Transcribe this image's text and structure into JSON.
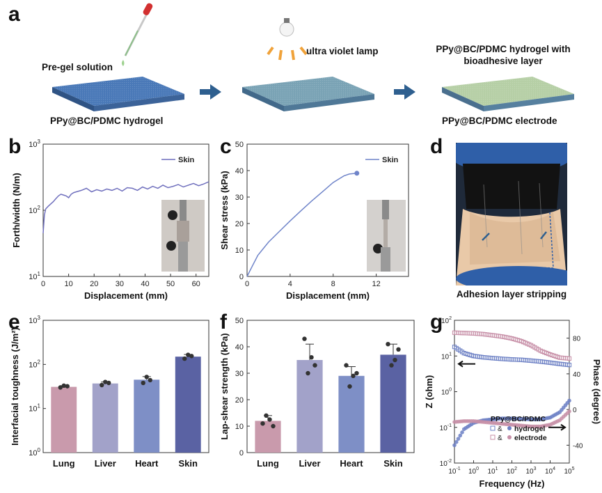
{
  "panel_letters": {
    "a": "a",
    "b": "b",
    "c": "c",
    "d": "d",
    "e": "e",
    "f": "f",
    "g": "g"
  },
  "panel_a": {
    "step1_label": "Pre-gel solution",
    "step1_caption": "PPy@BC/PDMC hydrogel",
    "step2_label": "ultra violet lamp",
    "step3_label_line1": "PPy@BC/PDMC hydrogel with",
    "step3_label_line2": "bioadhesive layer",
    "step3_caption": "PPy@BC/PDMC electrode",
    "colors": {
      "slab1": "#4a79b8",
      "slab2": "#7aa3b5",
      "slab3": "#b6cfa6",
      "arrow": "#2e5f8f",
      "dropper": "#d23030",
      "uv_rays": "#f0a23a"
    }
  },
  "panel_d": {
    "caption": "Adhesion layer stripping"
  },
  "chart_data": [
    {
      "panel": "b",
      "type": "line",
      "title": "",
      "xlabel": "Displacement (mm)",
      "ylabel": "Forth/width (N/m)",
      "xlim": [
        0,
        65
      ],
      "ylim": [
        10,
        1000
      ],
      "yscale": "log",
      "xticks": [
        0,
        10,
        20,
        30,
        40,
        50,
        60
      ],
      "yticks": [
        {
          "value": 10,
          "base": "10",
          "exp": "1"
        },
        {
          "value": 100,
          "base": "10",
          "exp": "2"
        },
        {
          "value": 1000,
          "base": "10",
          "exp": "3"
        }
      ],
      "legend": "top-right",
      "color": "#6f6fbd",
      "series": [
        {
          "name": "Skin",
          "x": [
            0,
            0.5,
            1,
            2,
            3,
            4,
            5,
            6,
            7,
            8,
            9,
            10,
            11,
            12,
            13,
            15,
            17,
            19,
            21,
            23,
            25,
            27,
            29,
            31,
            33,
            35,
            37,
            39,
            41,
            43,
            45,
            47,
            49,
            51,
            53,
            55,
            57,
            59,
            61,
            63,
            65
          ],
          "y": [
            45,
            85,
            105,
            115,
            125,
            135,
            150,
            165,
            175,
            170,
            165,
            155,
            175,
            185,
            190,
            200,
            215,
            190,
            205,
            195,
            210,
            200,
            215,
            195,
            220,
            215,
            200,
            225,
            210,
            230,
            215,
            240,
            220,
            230,
            245,
            225,
            240,
            255,
            235,
            250,
            270
          ]
        }
      ]
    },
    {
      "panel": "c",
      "type": "line",
      "title": "",
      "xlabel": "Displacement (mm)",
      "ylabel": "Shear stress (kPa)",
      "xlim": [
        0,
        15
      ],
      "ylim": [
        0,
        50
      ],
      "xticks": [
        0,
        4,
        8,
        12
      ],
      "yticks": [
        0,
        10,
        20,
        30,
        40,
        50
      ],
      "legend": "top-right",
      "color": "#6f84c9",
      "series": [
        {
          "name": "Skin",
          "x": [
            0,
            0.5,
            1,
            1.5,
            2,
            3,
            4,
            5,
            6,
            7,
            8,
            9,
            9.5,
            10.2
          ],
          "y": [
            0,
            4,
            8,
            10.5,
            13,
            17,
            21,
            24.8,
            28.5,
            32,
            35.5,
            38,
            38.7,
            39
          ]
        }
      ]
    },
    {
      "panel": "e",
      "type": "bar",
      "title": "",
      "xlabel": "",
      "ylabel": "Interfacial toughness (J/m²)",
      "ylim": [
        1,
        1000
      ],
      "yscale": "log",
      "yticks": [
        {
          "value": 1,
          "base": "10",
          "exp": "0"
        },
        {
          "value": 10,
          "base": "10",
          "exp": "1"
        },
        {
          "value": 100,
          "base": "10",
          "exp": "2"
        },
        {
          "value": 1000,
          "base": "10",
          "exp": "3"
        }
      ],
      "categories": [
        "Lung",
        "Liver",
        "Heart",
        "Skin"
      ],
      "values": [
        31,
        37,
        45,
        150
      ],
      "errors": [
        2,
        3,
        8,
        18
      ],
      "points": [
        [
          30,
          33,
          32
        ],
        [
          34,
          40,
          38
        ],
        [
          38,
          52,
          44
        ],
        [
          135,
          165,
          155
        ]
      ],
      "colors": [
        "#c99aac",
        "#a2a2c9",
        "#7e8fc6",
        "#5a62a3"
      ]
    },
    {
      "panel": "f",
      "type": "bar",
      "title": "",
      "xlabel": "",
      "ylabel": "Lap-shear strength (kPa)",
      "ylim": [
        0,
        50
      ],
      "yticks": [
        0,
        10,
        20,
        30,
        40,
        50
      ],
      "categories": [
        "Lung",
        "Liver",
        "Heart",
        "Skin"
      ],
      "values": [
        12,
        35,
        29,
        37
      ],
      "errors": [
        2,
        6,
        3.5,
        4
      ],
      "points": [
        [
          11,
          14,
          12.5,
          10
        ],
        [
          43,
          30,
          36,
          33
        ],
        [
          33,
          25,
          29,
          30
        ],
        [
          41,
          33,
          35,
          39
        ]
      ],
      "colors": [
        "#c99aac",
        "#a2a2c9",
        "#7e8fc6",
        "#5a62a3"
      ]
    },
    {
      "panel": "g",
      "type": "scatter",
      "title": "",
      "xlabel": "Frequency (Hz)",
      "ylabel": "Z (ohm)",
      "ylabel_right": "Phase (degree)",
      "xscale": "log",
      "yscale": "log",
      "xlim": [
        0.1,
        100000
      ],
      "ylim": [
        0.01,
        100
      ],
      "ylim_right": [
        -60,
        100
      ],
      "xticks": [
        {
          "value": 0.1,
          "base": "10",
          "exp": "-1"
        },
        {
          "value": 1,
          "base": "10",
          "exp": "0"
        },
        {
          "value": 10,
          "base": "10",
          "exp": "1"
        },
        {
          "value": 100,
          "base": "10",
          "exp": "2"
        },
        {
          "value": 1000,
          "base": "10",
          "exp": "3"
        },
        {
          "value": 10000,
          "base": "10",
          "exp": "4"
        },
        {
          "value": 100000,
          "base": "10",
          "exp": "5"
        }
      ],
      "yticks": [
        {
          "value": 0.01,
          "base": "10",
          "exp": "-2"
        },
        {
          "value": 0.1,
          "base": "10",
          "exp": "-1"
        },
        {
          "value": 1,
          "base": "10",
          "exp": "0"
        },
        {
          "value": 10,
          "base": "10",
          "exp": "1"
        },
        {
          "value": 100,
          "base": "10",
          "exp": "2"
        }
      ],
      "yticks_right": [
        -40,
        0,
        40,
        80
      ],
      "legend": "bottom-center",
      "legend_title": "PPy@BC/PDMC",
      "legend_joiner": "&",
      "series": [
        {
          "name": "hydrogel",
          "axis": "left",
          "marker": "square",
          "color": "#6b7fc4",
          "logx": [
            -1,
            -0.5,
            0,
            0.5,
            1,
            1.5,
            2,
            2.5,
            3,
            3.5,
            4,
            4.5,
            5
          ],
          "y": [
            18,
            12,
            10,
            9.2,
            8.7,
            8.3,
            8,
            7.8,
            7.4,
            7,
            6.5,
            6,
            5.6
          ]
        },
        {
          "name": "electrode",
          "axis": "left",
          "marker": "square",
          "color": "#c78fa7",
          "logx": [
            -1,
            -0.5,
            0,
            0.5,
            1,
            1.5,
            2,
            2.5,
            3,
            3.5,
            4,
            4.5,
            5
          ],
          "y": [
            45,
            44,
            43,
            41,
            38,
            35,
            31,
            26,
            20,
            14,
            11,
            9,
            8.5
          ]
        },
        {
          "name": "hydrogel",
          "axis": "right",
          "marker": "circle",
          "color": "#6b7fc4",
          "logx": [
            -1,
            -0.5,
            0,
            0.5,
            1,
            1.5,
            2,
            2.5,
            3,
            3.5,
            4,
            4.5,
            5
          ],
          "y": [
            -40,
            -22,
            -15,
            -12,
            -11,
            -10,
            -10,
            -10.5,
            -11,
            -11,
            -9,
            -3,
            10
          ]
        },
        {
          "name": "electrode",
          "axis": "right",
          "marker": "circle",
          "color": "#c78fa7",
          "logx": [
            -1,
            -0.5,
            0,
            0.5,
            1,
            1.5,
            2,
            2.5,
            3,
            3.5,
            4,
            4.5,
            5
          ],
          "y": [
            -14,
            -13,
            -13,
            -14,
            -15,
            -16,
            -17,
            -18,
            -19,
            -19,
            -17,
            -12,
            -2
          ]
        }
      ],
      "annotations": [
        "arrow pointing left at Z curve",
        "arrow pointing right at phase curve"
      ]
    }
  ]
}
